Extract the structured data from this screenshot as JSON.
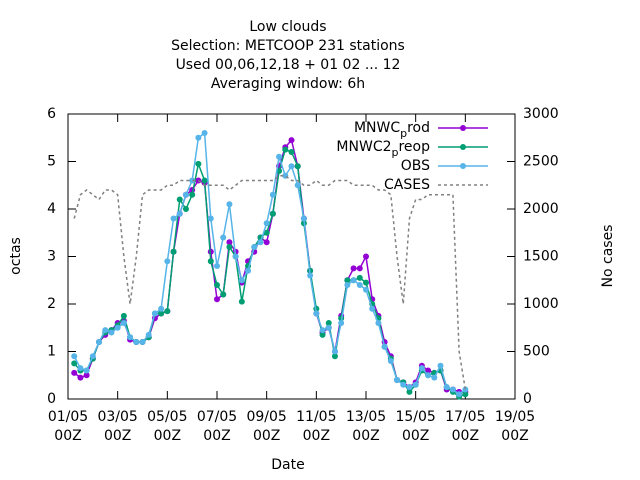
{
  "chart_data": {
    "type": "line",
    "title": [
      "Low clouds",
      "Selection: METCOOP    231 stations",
      "Used  00,06,12,18 + 01 02 ... 12",
      "Averaging window:  6h"
    ],
    "xlabel": "Date",
    "ylabel": "octas",
    "y2label": "No cases",
    "xlim": [
      0,
      18
    ],
    "xticks": [
      {
        "value": 0,
        "label": [
          "01/05",
          "00Z"
        ]
      },
      {
        "value": 2,
        "label": [
          "03/05",
          "00Z"
        ]
      },
      {
        "value": 4,
        "label": [
          "05/05",
          "00Z"
        ]
      },
      {
        "value": 6,
        "label": [
          "07/05",
          "00Z"
        ]
      },
      {
        "value": 8,
        "label": [
          "09/05",
          "00Z"
        ]
      },
      {
        "value": 10,
        "label": [
          "11/05",
          "00Z"
        ]
      },
      {
        "value": 12,
        "label": [
          "13/05",
          "00Z"
        ]
      },
      {
        "value": 14,
        "label": [
          "15/05",
          "00Z"
        ]
      },
      {
        "value": 16,
        "label": [
          "17/05",
          "00Z"
        ]
      },
      {
        "value": 18,
        "label": [
          "19/05",
          "00Z"
        ]
      }
    ],
    "ylim": [
      0,
      6
    ],
    "yticks": [
      0,
      1,
      2,
      3,
      4,
      5,
      6
    ],
    "y2lim": [
      0,
      3000
    ],
    "y2ticks": [
      0,
      500,
      1000,
      1500,
      2000,
      2500,
      3000
    ],
    "legend": "top-right",
    "x": [
      0.25,
      0.5,
      0.75,
      1,
      1.25,
      1.5,
      1.75,
      2,
      2.25,
      2.5,
      2.75,
      3,
      3.25,
      3.5,
      3.75,
      4,
      4.25,
      4.5,
      4.75,
      5,
      5.25,
      5.5,
      5.75,
      6,
      6.25,
      6.5,
      6.75,
      7,
      7.25,
      7.5,
      7.75,
      8,
      8.25,
      8.5,
      8.75,
      9,
      9.25,
      9.5,
      9.75,
      10,
      10.25,
      10.5,
      10.75,
      11,
      11.25,
      11.5,
      11.75,
      12,
      12.25,
      12.5,
      12.75,
      13,
      13.25,
      13.5,
      13.75,
      14,
      14.25,
      14.5,
      14.75,
      15,
      15.25,
      15.5,
      15.75,
      16
    ],
    "series": [
      {
        "name": "MNWC_prod",
        "color": "#9400d3",
        "points": true,
        "values": [
          0.55,
          0.45,
          0.5,
          0.85,
          1.2,
          1.35,
          1.45,
          1.6,
          1.65,
          1.25,
          1.2,
          1.2,
          1.3,
          1.7,
          1.8,
          1.85,
          3.1,
          3.9,
          4.3,
          4.4,
          4.6,
          4.55,
          3.1,
          2.1,
          2.2,
          3.3,
          3.1,
          2.45,
          2.9,
          3.1,
          3.4,
          3.3,
          3.9,
          4.9,
          5.3,
          5.45,
          4.9,
          3.8,
          2.7,
          1.8,
          1.4,
          1.5,
          1.0,
          1.75,
          2.5,
          2.75,
          2.75,
          3.0,
          2.1,
          1.75,
          1.2,
          0.9,
          0.4,
          0.35,
          0.25,
          0.35,
          0.7,
          0.6,
          0.55,
          0.6,
          0.2,
          0.2,
          0.15,
          0.15
        ]
      },
      {
        "name": "MNWC2_preop",
        "color": "#009e73",
        "points": true,
        "values": [
          0.75,
          0.6,
          0.6,
          0.85,
          1.2,
          1.4,
          1.45,
          1.55,
          1.75,
          1.3,
          1.2,
          1.2,
          1.3,
          1.8,
          1.8,
          1.85,
          3.1,
          4.2,
          4.0,
          4.3,
          4.95,
          4.6,
          2.9,
          2.4,
          2.2,
          3.2,
          3.0,
          2.05,
          2.8,
          3.2,
          3.4,
          3.5,
          3.9,
          4.8,
          5.25,
          5.2,
          4.9,
          3.7,
          2.7,
          1.9,
          1.35,
          1.6,
          0.9,
          1.7,
          2.5,
          2.5,
          2.55,
          2.45,
          2.0,
          1.7,
          1.1,
          0.85,
          0.4,
          0.35,
          0.15,
          0.3,
          0.6,
          0.5,
          0.55,
          0.6,
          0.25,
          0.15,
          0.05,
          0.1
        ]
      },
      {
        "name": "OBS",
        "color": "#56b4e9",
        "points": true,
        "values": [
          0.9,
          0.65,
          0.6,
          0.9,
          1.2,
          1.45,
          1.4,
          1.5,
          1.6,
          1.3,
          1.2,
          1.2,
          1.35,
          1.8,
          1.9,
          2.9,
          3.8,
          3.9,
          4.3,
          4.6,
          5.5,
          5.6,
          3.8,
          2.8,
          3.4,
          4.1,
          3.0,
          2.5,
          2.7,
          3.2,
          3.3,
          3.7,
          4.3,
          5.1,
          4.7,
          4.9,
          4.5,
          3.8,
          2.6,
          1.8,
          1.45,
          1.5,
          1.0,
          1.6,
          2.4,
          2.5,
          2.4,
          2.3,
          1.9,
          1.6,
          1.1,
          0.8,
          0.4,
          0.3,
          0.25,
          0.3,
          0.65,
          0.5,
          0.45,
          0.7,
          0.25,
          0.2,
          0.1,
          0.2
        ]
      },
      {
        "name": "CASES",
        "color": "#808080",
        "points": false,
        "dashed": true,
        "axis": "y2",
        "values": [
          1900,
          2150,
          2200,
          2150,
          2100,
          2200,
          2200,
          2150,
          1500,
          1000,
          1500,
          2150,
          2200,
          2200,
          2200,
          2250,
          2250,
          2300,
          2300,
          2300,
          2300,
          2250,
          2250,
          2250,
          2250,
          2200,
          2250,
          2300,
          2300,
          2300,
          2300,
          2300,
          2300,
          2350,
          2350,
          2300,
          2300,
          2250,
          2250,
          2300,
          2250,
          2250,
          2300,
          2300,
          2300,
          2250,
          2250,
          2250,
          2250,
          2200,
          2200,
          2150,
          1500,
          1000,
          1900,
          2100,
          2100,
          2150,
          2150,
          2150,
          2150,
          2150,
          500,
          100
        ]
      }
    ]
  }
}
